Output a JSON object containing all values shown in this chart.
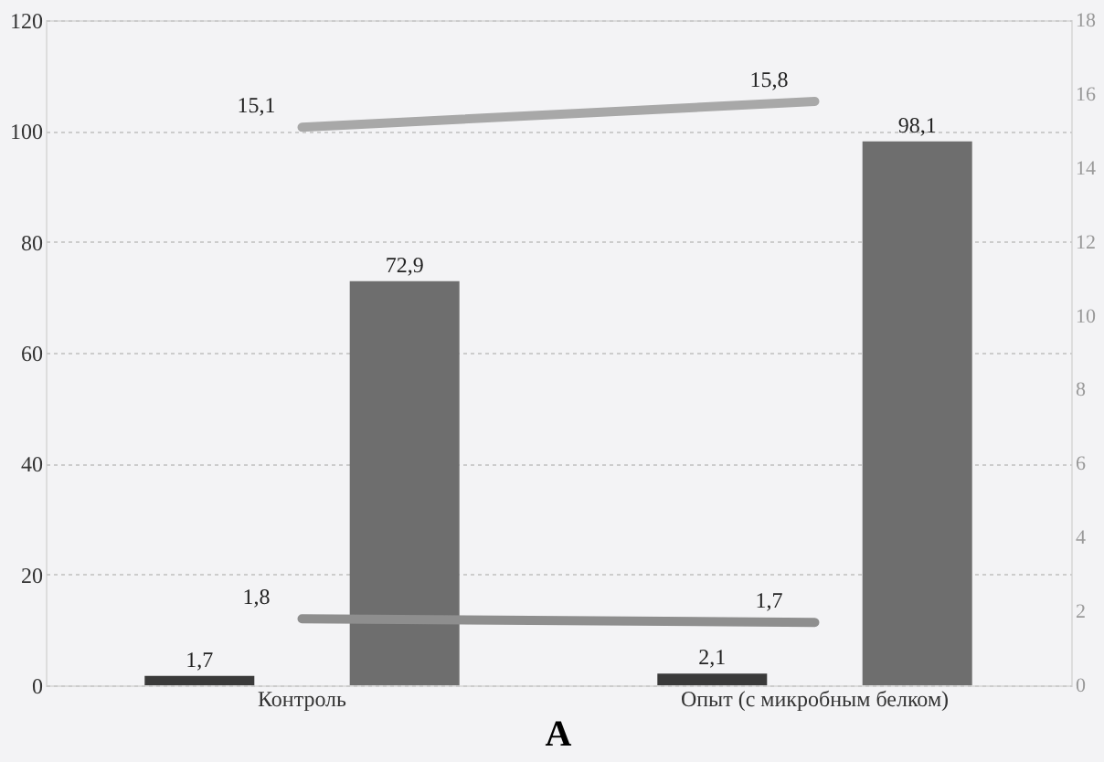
{
  "chart_data": {
    "type": "bar",
    "title": "A",
    "categories": [
      "Контроль",
      "Опыт (с микробным белком)"
    ],
    "series": [
      {
        "color": "#3a3a3a",
        "values": [
          1.7,
          2.1
        ],
        "value_labels": [
          "1,7",
          "2,1"
        ]
      },
      {
        "color": "#6e6e6e",
        "values": [
          72.9,
          98.1
        ],
        "value_labels": [
          "72,9",
          "98,1"
        ]
      },
      {
        "type": "line",
        "axis": "y2",
        "color": "#a8a8a8",
        "values": [
          15.1,
          15.8
        ],
        "value_labels": [
          "15,1",
          "15,8"
        ]
      },
      {
        "type": "line",
        "axis": "y2",
        "color": "#8e8e8e",
        "values": [
          1.8,
          1.7
        ],
        "value_labels": [
          "1,8",
          "1,7"
        ]
      }
    ],
    "ylim": [
      0,
      120
    ],
    "yticks": [
      0,
      20,
      40,
      60,
      80,
      100,
      120
    ],
    "y2lim": [
      0,
      18
    ],
    "y2ticks": [
      0,
      2,
      4,
      6,
      8,
      10,
      12,
      14,
      16,
      18
    ],
    "grid": "y"
  }
}
